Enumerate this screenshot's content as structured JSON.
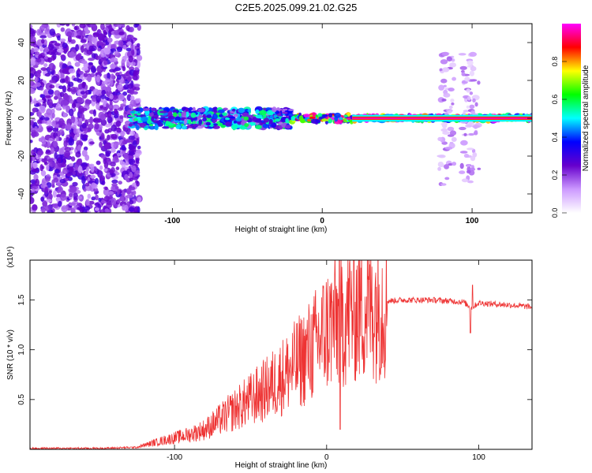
{
  "title": "C2E5.2025.099.21.02.G25",
  "chart_data": [
    {
      "type": "heatmap",
      "xlabel": "Height of straight line (km)",
      "ylabel": "Frequency (Hz)",
      "xlim": [
        -195,
        140
      ],
      "ylim": [
        -50,
        50
      ],
      "xticks": [
        -100,
        0,
        100
      ],
      "yticks": [
        -40,
        -20,
        0,
        20,
        40
      ],
      "colorbar": {
        "label": "Normalized spectral amplitude",
        "range": [
          0,
          1
        ],
        "ticks": [
          "0.0",
          "0.2",
          "0.4",
          "0.6",
          "0.8"
        ],
        "tick_values": [
          0.0,
          0.2,
          0.4,
          0.6,
          0.8
        ],
        "colormap": [
          "#ffffff",
          "#cc99ff",
          "#6600cc",
          "#0000ff",
          "#00ffff",
          "#00ff00",
          "#ffff00",
          "#ff0000",
          "#ff00ff"
        ]
      },
      "regions": [
        {
          "x": [
            -195,
            -122
          ],
          "y": [
            -50,
            50
          ],
          "amplitude": 0.15,
          "description": "scattered"
        },
        {
          "x": [
            -128,
            -20
          ],
          "y": [
            -5,
            5
          ],
          "amplitude": 0.5
        },
        {
          "x": [
            -20,
            20
          ],
          "y": [
            -2,
            2
          ],
          "amplitude": 0.85
        },
        {
          "x": [
            20,
            140
          ],
          "y": [
            -1.5,
            1.5
          ],
          "amplitude": 0.95
        },
        {
          "x": [
            78,
            88
          ],
          "y": [
            -35,
            35
          ],
          "amplitude": 0.15
        },
        {
          "x": [
            93,
            105
          ],
          "y": [
            -35,
            35
          ],
          "amplitude": 0.15
        }
      ]
    },
    {
      "type": "line",
      "xlabel": "Height of straight line (km)",
      "ylabel": "SNR (10 * v/v)",
      "yscale_label": "(x10⁴)",
      "xlim": [
        -195,
        135
      ],
      "ylim": [
        0,
        1.9
      ],
      "xticks": [
        -100,
        0,
        100
      ],
      "yticks": [
        0.5,
        1.0,
        1.5
      ],
      "ytick_labels": [
        "0.5",
        "1.0",
        "1.5"
      ],
      "color": "#ee3333",
      "series": [
        {
          "x": [
            -195,
            -150,
            -125,
            -110,
            -90,
            -80,
            -70,
            -60,
            -50,
            -40,
            -30,
            -20,
            -10,
            0,
            5,
            10,
            15,
            20,
            30,
            40,
            50,
            60,
            70,
            80,
            90,
            95,
            100,
            110,
            120,
            135
          ],
          "values": [
            0.01,
            0.01,
            0.02,
            0.08,
            0.15,
            0.2,
            0.3,
            0.4,
            0.5,
            0.6,
            0.72,
            0.85,
            1.0,
            1.2,
            1.28,
            1.3,
            1.38,
            1.42,
            1.46,
            1.49,
            1.5,
            1.5,
            1.5,
            1.49,
            1.48,
            1.42,
            1.47,
            1.46,
            1.45,
            1.43
          ]
        }
      ]
    }
  ]
}
